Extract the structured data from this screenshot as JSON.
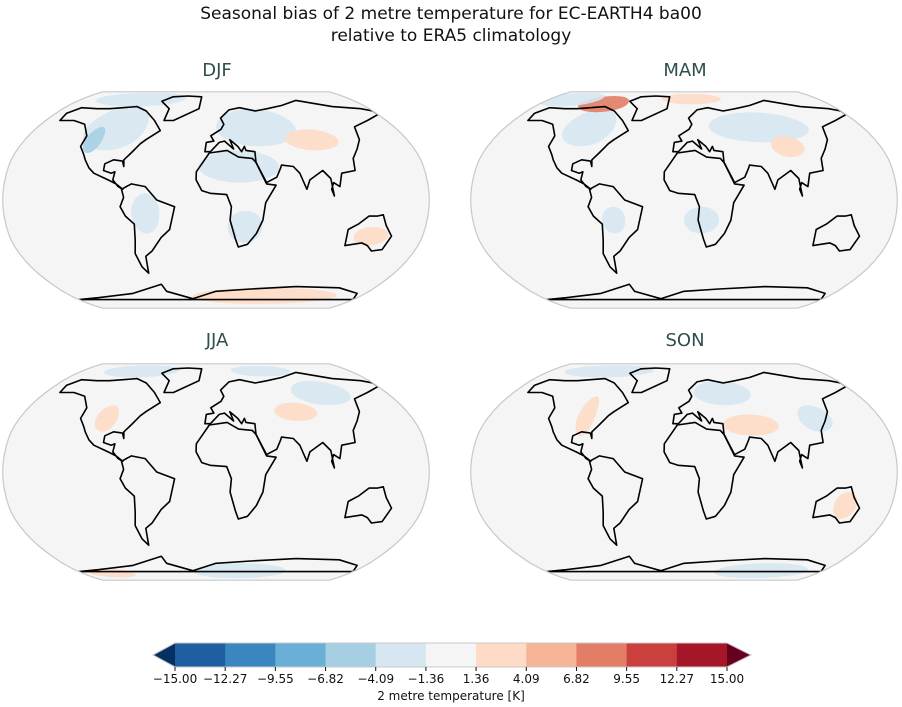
{
  "title_line1": "Seasonal bias of 2 metre temperature for EC-EARTH4 ba00",
  "title_line2": "relative to ERA5 climatology",
  "panels": [
    {
      "season": "DJF"
    },
    {
      "season": "MAM"
    },
    {
      "season": "JJA"
    },
    {
      "season": "SON"
    }
  ],
  "colorbar": {
    "label": "2 metre temperature [K]",
    "ticks": [
      "−15.00",
      "−12.27",
      "−9.55",
      "−6.82",
      "−4.09",
      "−1.36",
      "1.36",
      "4.09",
      "6.82",
      "9.55",
      "12.27",
      "15.00"
    ],
    "colors": [
      "#1f5ea0",
      "#3a87c0",
      "#6aafd5",
      "#a6cfe4",
      "#d6e7f1",
      "#f5f5f5",
      "#fddbc7",
      "#f5b596",
      "#e27e66",
      "#c9403f",
      "#a51629"
    ],
    "under_color": "#053061",
    "over_color": "#67001f",
    "extend": "both"
  },
  "map": {
    "projection": "Robinson",
    "central_longitude": 0,
    "ocean_color": "#f5f5f5",
    "outline_color": "#c8c8c8",
    "coastline_color": "#000000"
  }
}
